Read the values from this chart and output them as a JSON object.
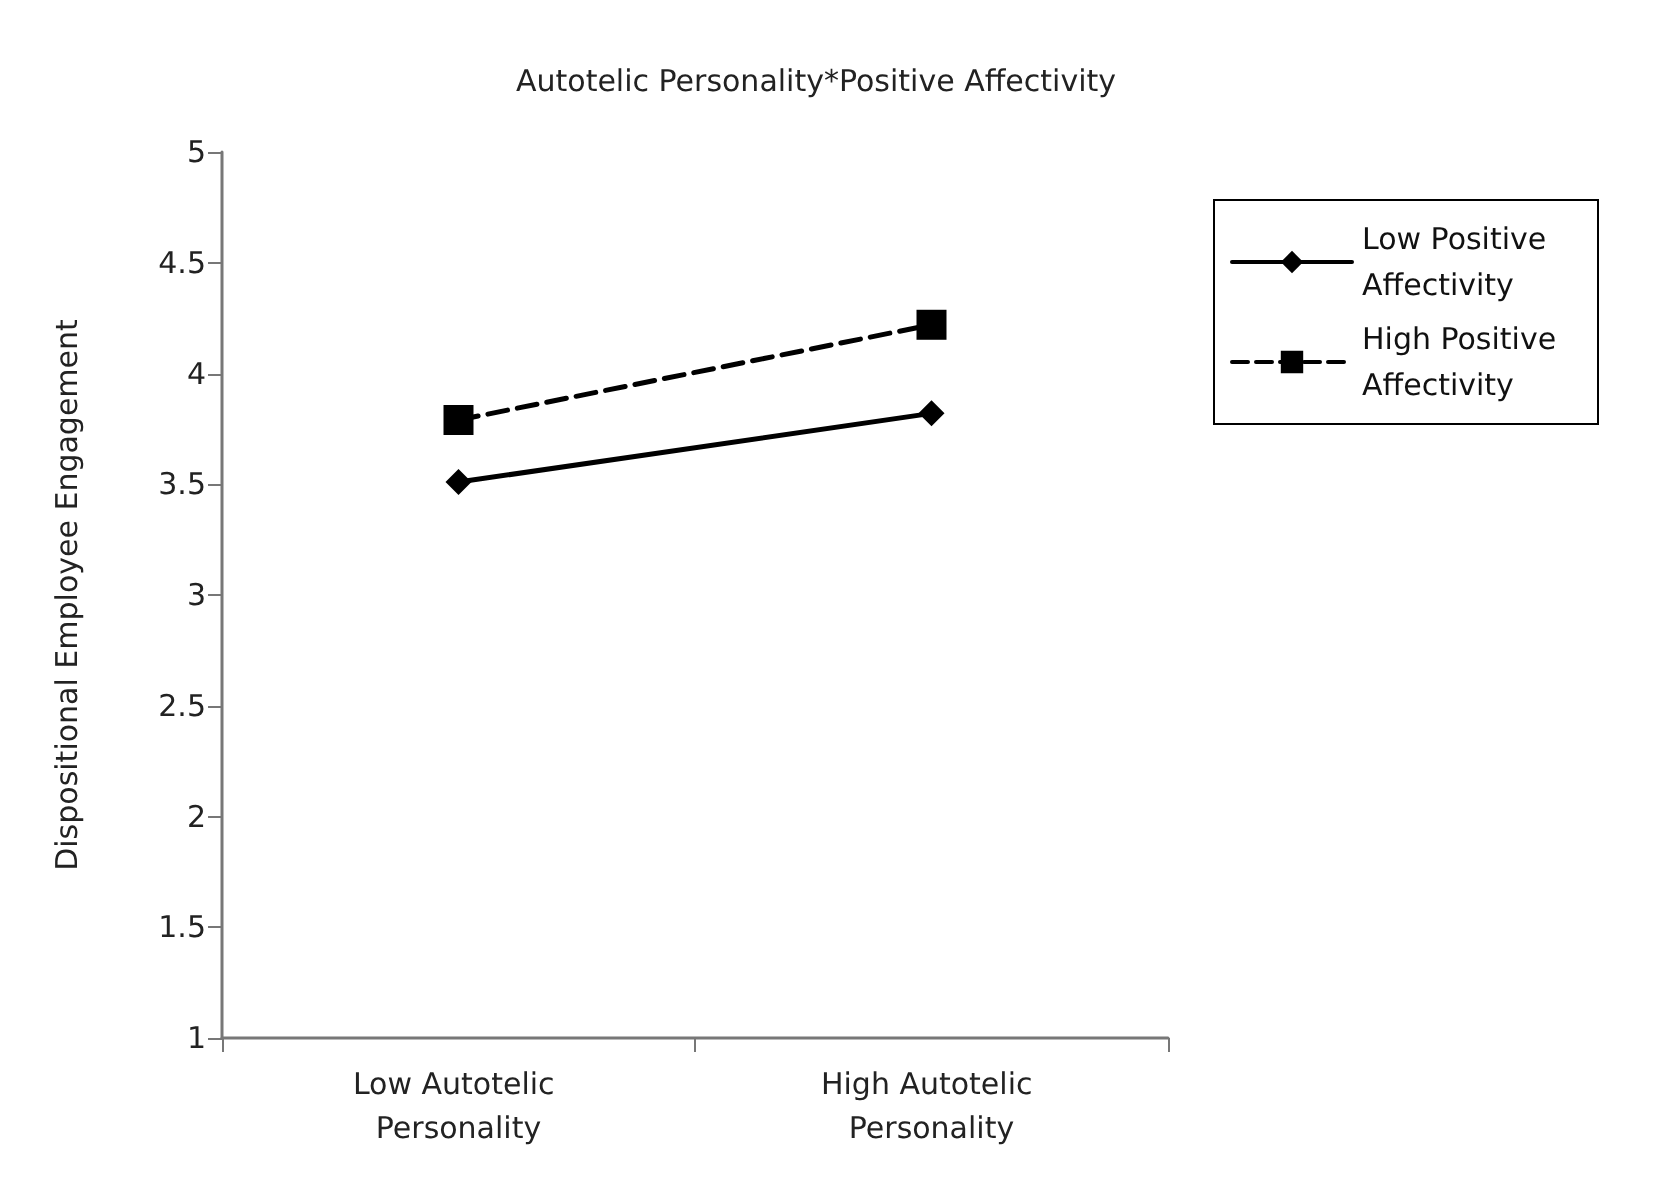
{
  "chart_data": {
    "type": "line",
    "title": "Autotelic Personality*Positive Affectivity",
    "ylabel": "Dispositional Employee Engagement",
    "categories": [
      "Low Autotelic Personality",
      "High Autotelic Personality"
    ],
    "series": [
      {
        "name": "Low Positive Affectivity",
        "color": "#000000",
        "values": [
          3.51,
          3.82
        ],
        "marker": "diamond",
        "line_style": "solid"
      },
      {
        "name": "High Positive Affectivity",
        "color": "#000000",
        "values": [
          3.79,
          4.22
        ],
        "marker": "square",
        "line_style": "dashed"
      }
    ],
    "ylim": [
      1,
      5
    ],
    "yticks": [
      1,
      1.5,
      2,
      2.5,
      3,
      3.5,
      4,
      4.5,
      5
    ],
    "grid": false,
    "legend": "right"
  }
}
